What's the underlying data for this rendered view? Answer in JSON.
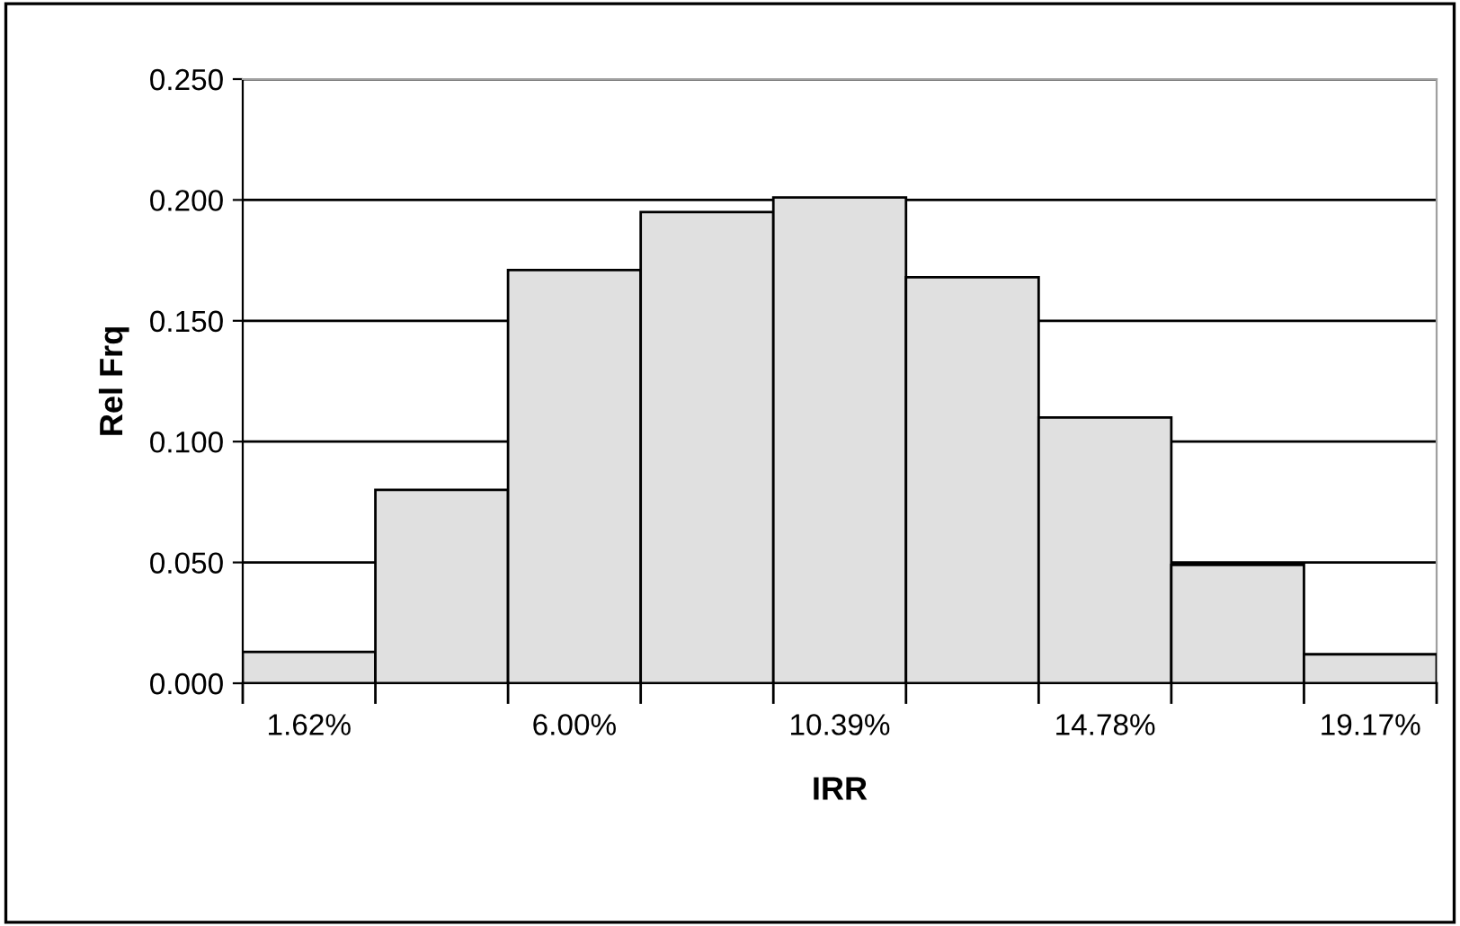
{
  "chart_data": {
    "type": "bar",
    "xlabel": "IRR",
    "ylabel": "Rel Frq",
    "categories": [
      "1.62%",
      null,
      "6.00%",
      null,
      "10.39%",
      null,
      "14.78%",
      null,
      "19.17%"
    ],
    "values": [
      0.013,
      0.08,
      0.171,
      0.195,
      0.201,
      0.168,
      0.11,
      0.049,
      0.012
    ],
    "color": "#e0e0e0",
    "ylim": [
      0,
      0.25
    ],
    "yticks": [
      {
        "value": 0,
        "label": "0.000"
      },
      {
        "value": 0.05,
        "label": "0.050"
      },
      {
        "value": 0.1,
        "label": "0.100"
      },
      {
        "value": 0.15,
        "label": "0.150"
      },
      {
        "value": 0.2,
        "label": "0.200"
      },
      {
        "value": 0.25,
        "label": "0.250"
      }
    ],
    "grid": "y"
  }
}
